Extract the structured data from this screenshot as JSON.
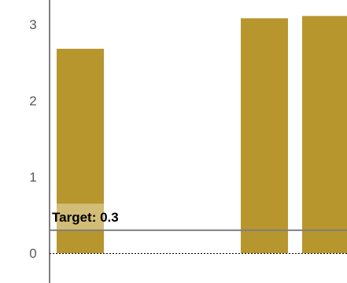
{
  "chart_data": {
    "type": "bar",
    "categories": [
      "",
      "",
      "",
      "",
      ""
    ],
    "values": [
      2.68,
      null,
      null,
      3.08,
      3.11
    ],
    "ylim": [
      0,
      3.3
    ],
    "yticks": [
      0,
      1,
      2,
      3
    ],
    "grid": false,
    "target": {
      "label": "Target: 0.3",
      "value": 0.3
    },
    "colors": {
      "bar": "#b8962e",
      "target_line": "#7f7f7f",
      "target_label_bg": "#d9c98f",
      "axis": "#000000",
      "tick_text": "#595959"
    }
  }
}
